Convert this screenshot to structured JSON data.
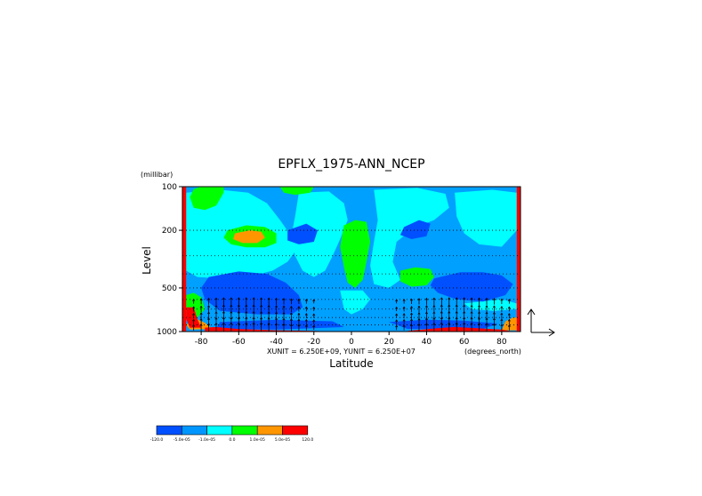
{
  "chart_data": {
    "type": "heatmap",
    "title": "EPFLX_1975-ANN_NCEP",
    "xlabel": "Latitude",
    "ylabel": "Level",
    "y_units": "(millibar)",
    "x_units": "(degrees_north)",
    "unit_note": "XUNIT = 6.250E+09, YUNIT = 6.250E+07",
    "x_range": [
      -90,
      90
    ],
    "y_range": [
      1000,
      100
    ],
    "y_scale": "log",
    "x_ticks": [
      "-80",
      "-60",
      "-40",
      "-20",
      "0",
      "20",
      "40",
      "60",
      "80"
    ],
    "x_tick_values": [
      -80,
      -60,
      -40,
      -20,
      0,
      20,
      40,
      60,
      80
    ],
    "y_ticks": [
      "100",
      "200",
      "500",
      "1000"
    ],
    "y_tick_values": [
      100,
      200,
      500,
      1000
    ],
    "legend": {
      "placement": "bottom-left",
      "labels": [
        "-120.0",
        "-5.0e-05",
        "-1.0e-05",
        "0.0",
        "1.0e-05",
        "5.0e-05",
        "120.0"
      ],
      "colors": [
        "#0050ff",
        "#0096ff",
        "#00ffff",
        "#00ff00",
        "#ff9600",
        "#ff0000"
      ]
    },
    "color_levels": {
      "bg": "#00a0ff",
      "cyan": "#00ffff",
      "blue": "#0050ff",
      "green": "#00ff00",
      "orange": "#ff9600",
      "red": "#ff0000"
    },
    "regions": [
      {
        "level": "cyan",
        "points": [
          [
            -88,
            110
          ],
          [
            -70,
            105
          ],
          [
            -55,
            110
          ],
          [
            -45,
            130
          ],
          [
            -38,
            170
          ],
          [
            -32,
            220
          ],
          [
            -30,
            280
          ],
          [
            -34,
            330
          ],
          [
            -42,
            380
          ],
          [
            -55,
            420
          ],
          [
            -70,
            430
          ],
          [
            -82,
            420
          ],
          [
            -88,
            380
          ]
        ]
      },
      {
        "level": "cyan",
        "points": [
          [
            -28,
            110
          ],
          [
            -12,
            108
          ],
          [
            -4,
            130
          ],
          [
            -2,
            170
          ],
          [
            -6,
            230
          ],
          [
            -10,
            300
          ],
          [
            -14,
            380
          ],
          [
            -20,
            420
          ],
          [
            -26,
            380
          ],
          [
            -30,
            300
          ],
          [
            -32,
            220
          ],
          [
            -30,
            160
          ]
        ]
      },
      {
        "level": "cyan",
        "points": [
          [
            12,
            105
          ],
          [
            35,
            102
          ],
          [
            50,
            112
          ],
          [
            52,
            140
          ],
          [
            44,
            170
          ],
          [
            34,
            190
          ],
          [
            24,
            240
          ],
          [
            22,
            330
          ],
          [
            26,
            440
          ],
          [
            20,
            500
          ],
          [
            12,
            470
          ],
          [
            10,
            350
          ],
          [
            12,
            240
          ],
          [
            14,
            170
          ]
        ]
      },
      {
        "level": "cyan",
        "points": [
          [
            55,
            110
          ],
          [
            75,
            105
          ],
          [
            88,
            110
          ],
          [
            88,
            200
          ],
          [
            80,
            260
          ],
          [
            68,
            250
          ],
          [
            60,
            210
          ],
          [
            56,
            160
          ]
        ]
      },
      {
        "level": "cyan",
        "points": [
          [
            -6,
            520
          ],
          [
            6,
            520
          ],
          [
            10,
            600
          ],
          [
            6,
            700
          ],
          [
            0,
            760
          ],
          [
            -4,
            700
          ]
        ]
      },
      {
        "level": "cyan",
        "points": [
          [
            60,
            640
          ],
          [
            80,
            600
          ],
          [
            88,
            640
          ],
          [
            88,
            700
          ],
          [
            76,
            720
          ],
          [
            64,
            700
          ]
        ]
      },
      {
        "level": "green",
        "points": [
          [
            -80,
            100
          ],
          [
            -68,
            100
          ],
          [
            -68,
            110
          ],
          [
            -72,
            135
          ],
          [
            -78,
            145
          ],
          [
            -84,
            140
          ],
          [
            -86,
            118
          ],
          [
            -84,
            104
          ]
        ]
      },
      {
        "level": "green",
        "points": [
          [
            -38,
            100
          ],
          [
            -20,
            100
          ],
          [
            -22,
            110
          ],
          [
            -30,
            114
          ],
          [
            -36,
            110
          ]
        ]
      },
      {
        "level": "green",
        "points": [
          [
            -66,
            200
          ],
          [
            -56,
            185
          ],
          [
            -46,
            190
          ],
          [
            -40,
            210
          ],
          [
            -40,
            245
          ],
          [
            -46,
            262
          ],
          [
            -56,
            262
          ],
          [
            -64,
            250
          ],
          [
            -68,
            225
          ]
        ]
      },
      {
        "level": "green",
        "points": [
          [
            -4,
            185
          ],
          [
            2,
            170
          ],
          [
            8,
            175
          ],
          [
            10,
            240
          ],
          [
            8,
            330
          ],
          [
            6,
            440
          ],
          [
            2,
            500
          ],
          [
            -2,
            460
          ],
          [
            -4,
            360
          ],
          [
            -6,
            260
          ]
        ]
      },
      {
        "level": "green",
        "points": [
          [
            26,
            380
          ],
          [
            34,
            360
          ],
          [
            42,
            370
          ],
          [
            44,
            420
          ],
          [
            40,
            480
          ],
          [
            32,
            490
          ],
          [
            26,
            450
          ]
        ]
      },
      {
        "level": "green",
        "points": [
          [
            -88,
            560
          ],
          [
            -84,
            540
          ],
          [
            -80,
            580
          ],
          [
            -78,
            700
          ],
          [
            -82,
            800
          ],
          [
            -88,
            780
          ]
        ]
      },
      {
        "level": "orange",
        "points": [
          [
            -62,
            210
          ],
          [
            -54,
            200
          ],
          [
            -48,
            205
          ],
          [
            -46,
            225
          ],
          [
            -50,
            245
          ],
          [
            -58,
            245
          ],
          [
            -63,
            230
          ]
        ]
      },
      {
        "level": "orange",
        "points": [
          [
            -84,
            800
          ],
          [
            -78,
            870
          ],
          [
            -74,
            960
          ],
          [
            -86,
            970
          ],
          [
            -88,
            900
          ]
        ]
      },
      {
        "level": "orange",
        "points": [
          [
            82,
            850
          ],
          [
            86,
            800
          ],
          [
            88,
            800
          ],
          [
            88,
            980
          ],
          [
            80,
            980
          ]
        ]
      },
      {
        "level": "blue",
        "points": [
          [
            -76,
            420
          ],
          [
            -60,
            385
          ],
          [
            -45,
            400
          ],
          [
            -35,
            460
          ],
          [
            -28,
            560
          ],
          [
            -26,
            680
          ],
          [
            -32,
            760
          ],
          [
            -50,
            760
          ],
          [
            -70,
            720
          ],
          [
            -78,
            600
          ],
          [
            -80,
            500
          ]
        ]
      },
      {
        "level": "blue",
        "points": [
          [
            -34,
            200
          ],
          [
            -24,
            180
          ],
          [
            -18,
            200
          ],
          [
            -20,
            240
          ],
          [
            -28,
            250
          ],
          [
            -34,
            235
          ]
        ]
      },
      {
        "level": "blue",
        "points": [
          [
            28,
            190
          ],
          [
            36,
            170
          ],
          [
            42,
            180
          ],
          [
            40,
            220
          ],
          [
            32,
            230
          ],
          [
            26,
            215
          ]
        ]
      },
      {
        "level": "blue",
        "points": [
          [
            44,
            430
          ],
          [
            58,
            390
          ],
          [
            70,
            390
          ],
          [
            80,
            410
          ],
          [
            86,
            470
          ],
          [
            82,
            560
          ],
          [
            70,
            620
          ],
          [
            56,
            600
          ],
          [
            46,
            540
          ],
          [
            42,
            480
          ]
        ]
      },
      {
        "level": "blue",
        "points": [
          [
            -70,
            860
          ],
          [
            -40,
            830
          ],
          [
            -10,
            850
          ],
          [
            -4,
            930
          ],
          [
            -40,
            970
          ],
          [
            -72,
            960
          ]
        ]
      },
      {
        "level": "blue",
        "points": [
          [
            20,
            860
          ],
          [
            40,
            830
          ],
          [
            60,
            840
          ],
          [
            78,
            880
          ],
          [
            70,
            960
          ],
          [
            30,
            960
          ]
        ]
      },
      {
        "level": "red",
        "points": [
          [
            -90,
            100
          ],
          [
            -88,
            100
          ],
          [
            -88,
            1000
          ],
          [
            -90,
            1000
          ]
        ]
      },
      {
        "level": "red",
        "points": [
          [
            88,
            100
          ],
          [
            90,
            100
          ],
          [
            90,
            1000
          ],
          [
            88,
            1000
          ]
        ]
      },
      {
        "level": "red",
        "points": [
          [
            -88,
            680
          ],
          [
            -84,
            680
          ],
          [
            -82,
            820
          ],
          [
            -80,
            940
          ],
          [
            -86,
            940
          ],
          [
            -88,
            820
          ]
        ]
      },
      {
        "level": "red",
        "points": [
          [
            -78,
            940
          ],
          [
            -72,
            930
          ],
          [
            -60,
            960
          ],
          [
            -40,
            980
          ],
          [
            -20,
            990
          ],
          [
            -10,
            1000
          ],
          [
            -78,
            1000
          ]
        ]
      },
      {
        "level": "red",
        "points": [
          [
            30,
            990
          ],
          [
            45,
            950
          ],
          [
            55,
            930
          ],
          [
            68,
            950
          ],
          [
            80,
            970
          ],
          [
            86,
            1000
          ],
          [
            30,
            1000
          ]
        ]
      }
    ],
    "vector_lats": [
      -84,
      -80,
      -76,
      -72,
      -68,
      -64,
      -60,
      -56,
      -52,
      -48,
      -44,
      -40,
      -36,
      -32,
      -28,
      -24,
      -20,
      24,
      28,
      32,
      36,
      40,
      44,
      48,
      52,
      56,
      60,
      64,
      68,
      72,
      76,
      80,
      84
    ],
    "vector_amplitudes": [
      0.4,
      0.6,
      0.8,
      0.9,
      1.0,
      1.0,
      1.0,
      1.0,
      1.0,
      0.95,
      0.9,
      0.8,
      0.7,
      0.55,
      0.45,
      0.35,
      0.25,
      0.25,
      0.35,
      0.5,
      0.65,
      0.8,
      0.9,
      1.0,
      1.0,
      1.0,
      1.0,
      0.95,
      0.9,
      0.8,
      0.7,
      0.5,
      0.35
    ],
    "vector_levels": [
      620,
      700,
      780,
      860,
      940
    ],
    "reference_vector": {
      "u": 1,
      "v": 1
    }
  }
}
